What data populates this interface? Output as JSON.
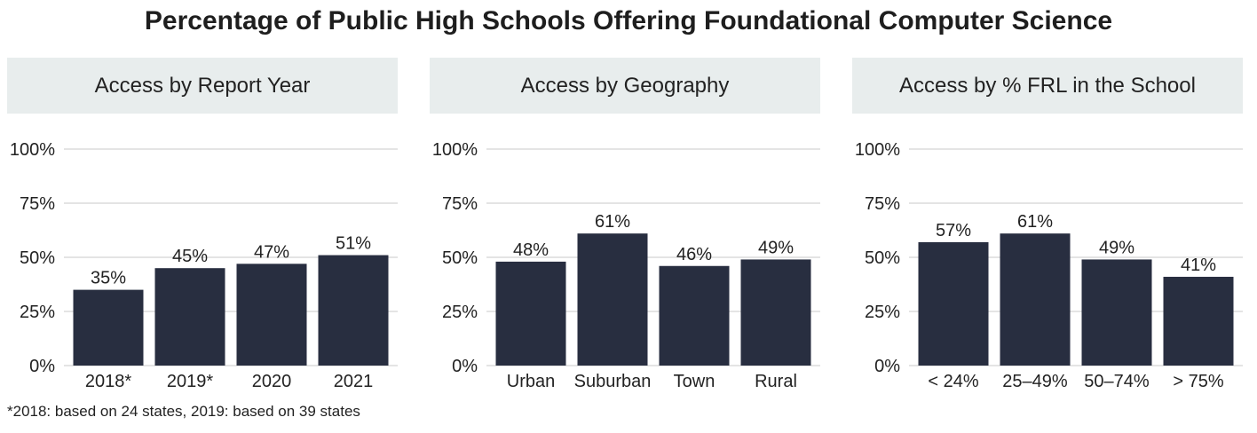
{
  "title": "Percentage of Public High Schools Offering Foundational Computer Science",
  "footnote": "*2018: based on 24 states, 2019: based on 39 states",
  "colors": {
    "bar": "#282e40",
    "grid": "#c8c8c8",
    "header_bg": "#e8eded"
  },
  "chart_data": [
    {
      "type": "bar",
      "title": "Access by Report Year",
      "categories": [
        "2018*",
        "2019*",
        "2020",
        "2021"
      ],
      "values": [
        35,
        45,
        47,
        51
      ],
      "value_labels": [
        "35%",
        "45%",
        "47%",
        "51%"
      ],
      "ylim": [
        0,
        100
      ],
      "yticks": [
        "0%",
        "25%",
        "50%",
        "75%",
        "100%"
      ],
      "grid": true
    },
    {
      "type": "bar",
      "title": "Access by Geography",
      "categories": [
        "Urban",
        "Suburban",
        "Town",
        "Rural"
      ],
      "values": [
        48,
        61,
        46,
        49
      ],
      "value_labels": [
        "48%",
        "61%",
        "46%",
        "49%"
      ],
      "ylim": [
        0,
        100
      ],
      "yticks": [
        "0%",
        "25%",
        "50%",
        "75%",
        "100%"
      ],
      "grid": true
    },
    {
      "type": "bar",
      "title": "Access by % FRL in the School",
      "categories": [
        "< 24%",
        "25–49%",
        "50–74%",
        "> 75%"
      ],
      "values": [
        57,
        61,
        49,
        41
      ],
      "value_labels": [
        "57%",
        "61%",
        "49%",
        "41%"
      ],
      "ylim": [
        0,
        100
      ],
      "yticks": [
        "0%",
        "25%",
        "50%",
        "75%",
        "100%"
      ],
      "grid": true
    }
  ]
}
